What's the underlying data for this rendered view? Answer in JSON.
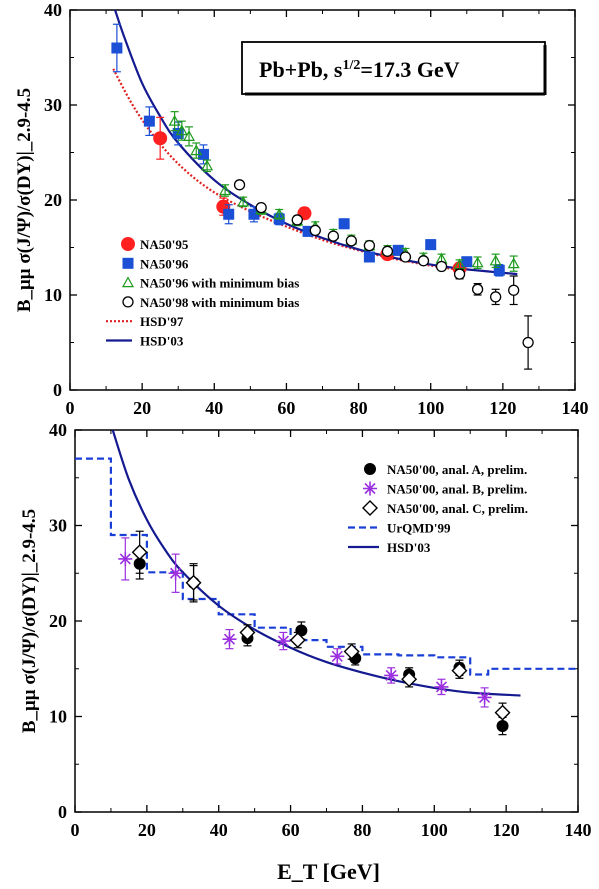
{
  "chart_data": [
    {
      "type": "scatter",
      "x_ticks": [
        "0",
        "20",
        "40",
        "60",
        "80",
        "100",
        "120",
        "140"
      ],
      "y_ticks": [
        "0",
        "10",
        "20",
        "30",
        "40"
      ],
      "xlim": [
        0,
        140
      ],
      "ylim": [
        0,
        40
      ],
      "ylabel": "B_μμ σ(J/Ψ)/σ(DY)|_2.9-4.5",
      "annotation": {
        "main": "Pb+Pb,  s",
        "sup": "1/2",
        "tail": "=17.3 GeV"
      },
      "series": [
        {
          "name": "NA50'95",
          "marker": "circle-filled",
          "color": "#ff2020",
          "points": [
            [
              25,
              26.5,
              2.2
            ],
            [
              42.5,
              19.3,
              0.9
            ],
            [
              65,
              18.6,
              0.6
            ],
            [
              88,
              14.3,
              0.5
            ],
            [
              108,
              12.8,
              0.5
            ]
          ]
        },
        {
          "name": "NA50'96",
          "marker": "square-filled",
          "color": "#1a4fd6",
          "points": [
            [
              13,
              36,
              2.5
            ],
            [
              22,
              28.3,
              1.5
            ],
            [
              30,
              27,
              1.2
            ],
            [
              37,
              24.8,
              1
            ],
            [
              44,
              18.5,
              1
            ],
            [
              51,
              18.5,
              0.8
            ],
            [
              58,
              18,
              0.6
            ],
            [
              66,
              16.7,
              0.5
            ],
            [
              76,
              17.5,
              0.5
            ],
            [
              83,
              14,
              0.5
            ],
            [
              91,
              14.7,
              0.5
            ],
            [
              100,
              15.3,
              0.5
            ],
            [
              110,
              13.5,
              0.5
            ],
            [
              119,
              12.6,
              0.6
            ]
          ]
        },
        {
          "name": "NA50'96 with minimum bias",
          "marker": "triangle-open",
          "color": "#1f9a1f",
          "points": [
            [
              29,
              28.3,
              1
            ],
            [
              31,
              27.3,
              1
            ],
            [
              33,
              26.7,
              1
            ],
            [
              35,
              25.2,
              0.8
            ],
            [
              38,
              23.6,
              0.6
            ],
            [
              43,
              21,
              0.6
            ],
            [
              48,
              19.8,
              0.5
            ],
            [
              53,
              19,
              0.5
            ],
            [
              58,
              18.5,
              0.5
            ],
            [
              63,
              17.8,
              0.5
            ],
            [
              68,
              17.2,
              0.5
            ],
            [
              73,
              16.4,
              0.5
            ],
            [
              78,
              15.8,
              0.5
            ],
            [
              83,
              15.2,
              0.5
            ],
            [
              88,
              14.7,
              0.5
            ],
            [
              93,
              14.4,
              0.5
            ],
            [
              98,
              13.9,
              0.5
            ],
            [
              103,
              13.8,
              0.5
            ],
            [
              108,
              13.2,
              0.5
            ],
            [
              113,
              13.4,
              0.6
            ],
            [
              118,
              13.6,
              0.7
            ],
            [
              123,
              13.3,
              0.8
            ]
          ]
        },
        {
          "name": "NA50'98 with minimum bias",
          "marker": "circle-open",
          "color": "#000000",
          "points": [
            [
              47,
              21.6,
              0.3
            ],
            [
              53,
              19.2,
              0.3
            ],
            [
              63,
              17.9,
              0.3
            ],
            [
              68,
              16.8,
              0.3
            ],
            [
              73,
              16.2,
              0.3
            ],
            [
              78,
              15.7,
              0.3
            ],
            [
              83,
              15.2,
              0.3
            ],
            [
              88,
              14.6,
              0.3
            ],
            [
              93,
              14,
              0.3
            ],
            [
              98,
              13.6,
              0.3
            ],
            [
              103,
              13,
              0.3
            ],
            [
              108,
              12.2,
              0.5
            ],
            [
              113,
              10.6,
              0.6
            ],
            [
              118,
              9.8,
              0.8
            ],
            [
              123,
              10.5,
              1.5
            ],
            [
              127,
              5,
              2.8
            ]
          ]
        }
      ],
      "curves": [
        {
          "name": "HSD'97",
          "color": "#e02020",
          "style": "dotted",
          "x": [
            12,
            18,
            25,
            32,
            40,
            50,
            60,
            70,
            80,
            90,
            100,
            109
          ],
          "y": [
            33.8,
            29.6,
            25.9,
            23.1,
            20.8,
            18.8,
            17.2,
            15.8,
            14.7,
            13.8,
            13.1,
            12.6
          ]
        },
        {
          "name": "HSD'03",
          "color": "#141a8f",
          "style": "solid",
          "x": [
            12.5,
            15,
            20,
            25,
            30,
            40,
            50,
            60,
            70,
            80,
            90,
            100,
            110,
            124
          ],
          "y": [
            40,
            37.2,
            32.3,
            28.8,
            26,
            22.1,
            19.5,
            17.5,
            16,
            14.8,
            13.9,
            13.2,
            12.7,
            12.2
          ]
        }
      ]
    },
    {
      "type": "scatter",
      "x_ticks": [
        "0",
        "20",
        "40",
        "60",
        "80",
        "100",
        "120",
        "140"
      ],
      "y_ticks": [
        "0",
        "10",
        "20",
        "30",
        "40"
      ],
      "xlim": [
        0,
        140
      ],
      "ylim": [
        0,
        40
      ],
      "ylabel": "B_μμ σ(J/Ψ)/σ(DY)|_2.9-4.5",
      "xlabel": "E_T [GeV]",
      "series": [
        {
          "name": "NA50'00, anal. A, prelim.",
          "marker": "circle-filled",
          "color": "#000000",
          "points": [
            [
              18,
              26,
              1.6
            ],
            [
              33,
              24,
              1.8
            ],
            [
              48,
              18.2,
              0.8
            ],
            [
              63,
              19,
              0.9
            ],
            [
              78,
              16.1,
              0.7
            ],
            [
              93,
              14.4,
              0.7
            ],
            [
              107,
              15.1,
              0.8
            ],
            [
              119,
              9,
              0.9
            ]
          ]
        },
        {
          "name": "NA50'00, anal. B, prelim.",
          "marker": "asterisk",
          "color": "#9b30e0",
          "points": [
            [
              14,
              26.5,
              2.2
            ],
            [
              28,
              25,
              2
            ],
            [
              43,
              18.1,
              1
            ],
            [
              58,
              17.9,
              0.9
            ],
            [
              73,
              16.3,
              0.8
            ],
            [
              88,
              14.3,
              0.8
            ],
            [
              102,
              13.1,
              0.8
            ],
            [
              114,
              12,
              1
            ]
          ]
        },
        {
          "name": "NA50'00, anal. C, prelim.",
          "marker": "diamond-open",
          "color": "#000000",
          "points": [
            [
              18,
              27.2,
              2.2
            ],
            [
              33,
              24,
              2
            ],
            [
              48,
              18.8,
              0.8
            ],
            [
              62,
              18,
              0.8
            ],
            [
              77,
              16.8,
              0.8
            ],
            [
              93,
              13.9,
              0.8
            ],
            [
              107,
              14.8,
              0.8
            ],
            [
              119,
              10.4,
              1
            ]
          ]
        }
      ],
      "curves": [
        {
          "name": "UrQMD'99",
          "color": "#1a3fd6",
          "style": "dashed",
          "shape": "step",
          "x": [
            0,
            10,
            10,
            20,
            20,
            30,
            30,
            40,
            40,
            50,
            50,
            60,
            60,
            70,
            70,
            80,
            80,
            90,
            90,
            100,
            100,
            110,
            110,
            115,
            115,
            140
          ],
          "y": [
            37,
            37,
            29,
            29,
            25.1,
            25.1,
            22.3,
            22.3,
            20.7,
            20.7,
            19.3,
            19.3,
            18,
            18,
            17.3,
            17.3,
            16.5,
            16.5,
            16.4,
            16.4,
            16.2,
            16.2,
            14.4,
            14.4,
            15,
            15
          ]
        },
        {
          "name": "HSD'03",
          "color": "#141a8f",
          "style": "solid",
          "x": [
            10.5,
            15,
            20,
            25,
            30,
            40,
            50,
            60,
            70,
            80,
            90,
            100,
            110,
            124
          ],
          "y": [
            40,
            34.8,
            30.6,
            27.5,
            25.1,
            21.6,
            19.1,
            17.2,
            15.7,
            14.6,
            13.7,
            13,
            12.5,
            12.2
          ]
        }
      ]
    }
  ]
}
